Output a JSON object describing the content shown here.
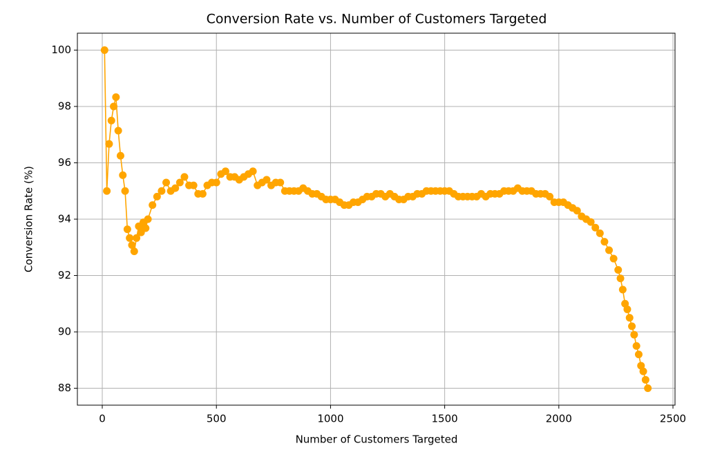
{
  "chart_data": {
    "type": "line",
    "title": "Conversion Rate vs. Number of Customers Targeted",
    "xlabel": "Number of Customers Targeted",
    "ylabel": "Conversion Rate (%)",
    "x": [
      10,
      20,
      30,
      40,
      50,
      60,
      70,
      80,
      90,
      100,
      110,
      120,
      130,
      140,
      150,
      160,
      170,
      180,
      190,
      200,
      220,
      240,
      260,
      280,
      300,
      320,
      340,
      360,
      380,
      400,
      420,
      440,
      460,
      480,
      500,
      520,
      540,
      560,
      580,
      600,
      620,
      640,
      660,
      680,
      700,
      720,
      740,
      760,
      780,
      800,
      820,
      840,
      860,
      880,
      900,
      920,
      940,
      960,
      980,
      1000,
      1020,
      1040,
      1060,
      1080,
      1100,
      1120,
      1140,
      1160,
      1180,
      1200,
      1220,
      1240,
      1260,
      1280,
      1300,
      1320,
      1340,
      1360,
      1380,
      1400,
      1420,
      1440,
      1460,
      1480,
      1500,
      1520,
      1540,
      1560,
      1580,
      1600,
      1620,
      1640,
      1660,
      1680,
      1700,
      1720,
      1740,
      1760,
      1780,
      1800,
      1820,
      1840,
      1860,
      1880,
      1900,
      1920,
      1940,
      1960,
      1980,
      2000,
      2020,
      2040,
      2060,
      2080,
      2100,
      2120,
      2140,
      2160,
      2180,
      2200,
      2220,
      2240,
      2260,
      2270,
      2280,
      2290,
      2300,
      2310,
      2320,
      2330,
      2340,
      2350,
      2360,
      2370,
      2380,
      2390
    ],
    "series": [
      {
        "color": "#ffa500",
        "values": [
          100,
          95,
          96.67,
          97.5,
          98,
          98.33,
          97.14,
          96.25,
          95.56,
          95,
          93.64,
          93.33,
          93.08,
          92.86,
          93.33,
          93.75,
          93.53,
          93.89,
          93.68,
          94.0,
          94.5,
          94.8,
          95.0,
          95.3,
          95.0,
          95.1,
          95.3,
          95.5,
          95.2,
          95.2,
          94.9,
          94.9,
          95.2,
          95.3,
          95.3,
          95.6,
          95.7,
          95.5,
          95.5,
          95.4,
          95.5,
          95.6,
          95.7,
          95.2,
          95.3,
          95.4,
          95.2,
          95.3,
          95.3,
          95.0,
          95.0,
          95.0,
          95.0,
          95.1,
          95.0,
          94.9,
          94.9,
          94.8,
          94.7,
          94.7,
          94.7,
          94.6,
          94.5,
          94.5,
          94.6,
          94.6,
          94.7,
          94.8,
          94.8,
          94.9,
          94.9,
          94.8,
          94.9,
          94.8,
          94.7,
          94.7,
          94.8,
          94.8,
          94.9,
          94.9,
          95.0,
          95.0,
          95.0,
          95.0,
          95.0,
          95.0,
          94.9,
          94.8,
          94.8,
          94.8,
          94.8,
          94.8,
          94.9,
          94.8,
          94.9,
          94.9,
          94.9,
          95.0,
          95.0,
          95.0,
          95.1,
          95.0,
          95.0,
          95.0,
          94.9,
          94.9,
          94.9,
          94.8,
          94.6,
          94.6,
          94.6,
          94.5,
          94.4,
          94.3,
          94.1,
          94.0,
          93.9,
          93.7,
          93.5,
          93.2,
          92.9,
          92.6,
          92.2,
          91.9,
          91.5,
          91.0,
          90.8,
          90.5,
          90.2,
          89.9,
          89.5,
          89.2,
          88.8,
          88.6,
          88.3,
          88.0
        ]
      }
    ],
    "xlim": [
      -109,
      2509
    ],
    "ylim": [
      87.4,
      100.6
    ],
    "xticks": [
      0,
      500,
      1000,
      1500,
      2000,
      2500
    ],
    "yticks": [
      88,
      90,
      92,
      94,
      96,
      98,
      100
    ],
    "grid": true
  }
}
